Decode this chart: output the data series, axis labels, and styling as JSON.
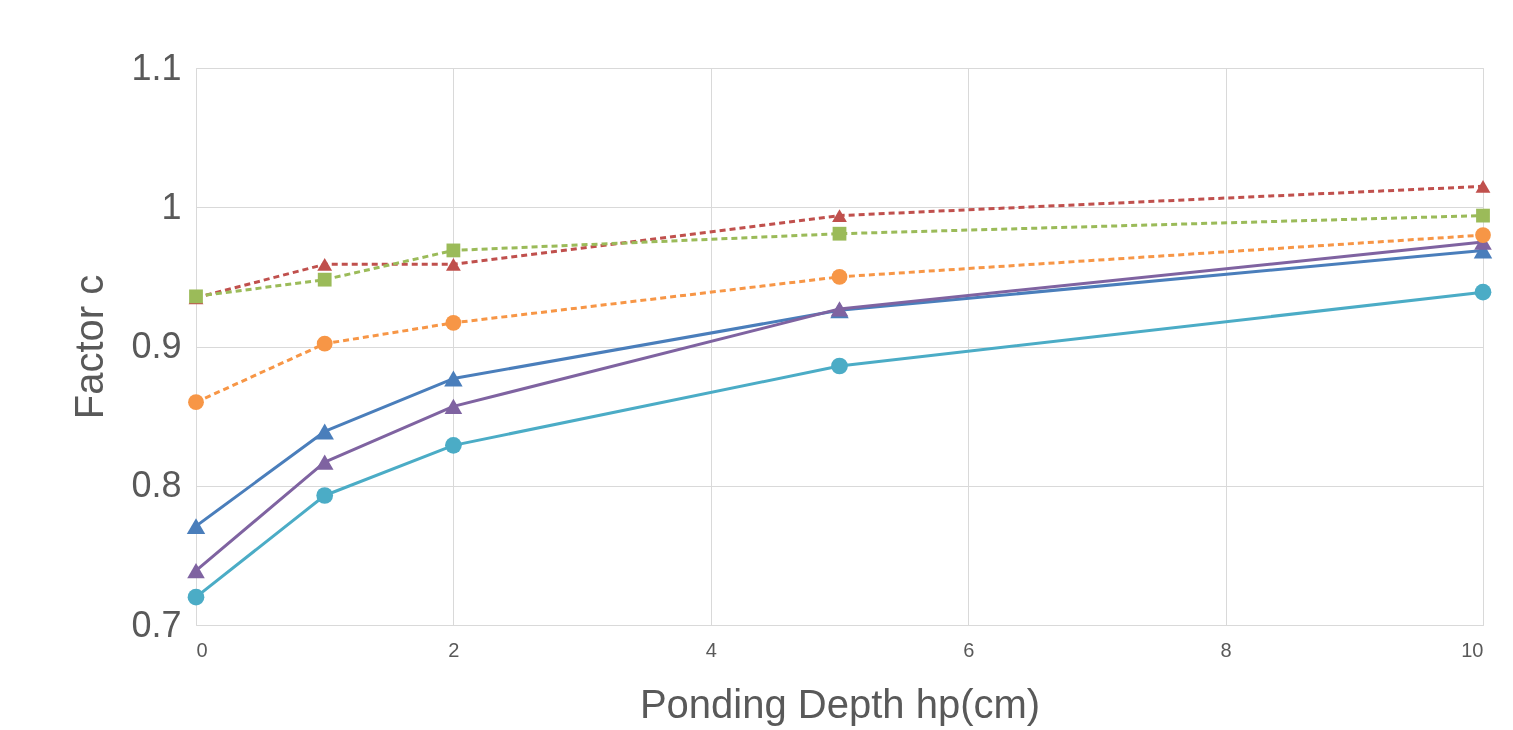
{
  "chart_data": {
    "type": "line",
    "xlabel": "Ponding Depth hp(cm)",
    "ylabel": "Factor c",
    "x": [
      0,
      1,
      2,
      5,
      10
    ],
    "xlim": [
      0,
      10
    ],
    "xticks": [
      0,
      2,
      4,
      6,
      8,
      10
    ],
    "ylim": [
      0.7,
      1.1
    ],
    "yticks": [
      0.7,
      0.8,
      0.9,
      1,
      1.1
    ],
    "grid": true,
    "series": [
      {
        "color": "#4a7ebb",
        "marker": "triangle",
        "line_style": "solid",
        "values": [
          0.771,
          0.839,
          0.877,
          0.926,
          0.969
        ]
      },
      {
        "color": "#7f63a1",
        "marker": "triangle",
        "line_style": "solid",
        "values": [
          0.739,
          0.817,
          0.857,
          0.927,
          0.975
        ]
      },
      {
        "color": "#4bacc6",
        "marker": "circle",
        "line_style": "solid",
        "values": [
          0.72,
          0.793,
          0.829,
          0.886,
          0.939
        ]
      },
      {
        "color": "#f79646",
        "marker": "circle",
        "line_style": "dashed",
        "values": [
          0.86,
          0.902,
          0.917,
          0.95,
          0.98
        ]
      },
      {
        "color": "#c0504d",
        "marker": "triangle",
        "line_style": "dashed",
        "values": [
          0.935,
          0.959,
          0.959,
          0.994,
          1.015
        ]
      },
      {
        "color": "#9bbb59",
        "marker": "square",
        "line_style": "dashed",
        "values": [
          0.936,
          0.948,
          0.969,
          0.981,
          0.994
        ]
      }
    ]
  }
}
